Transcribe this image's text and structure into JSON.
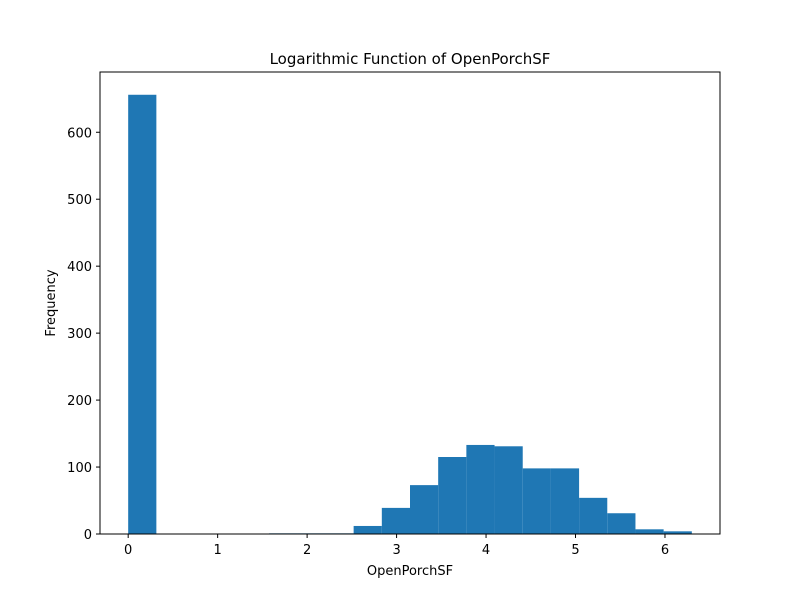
{
  "chart_data": {
    "type": "bar",
    "title": "Logarithmic Function of OpenPorchSF",
    "xlabel": "OpenPorchSF",
    "ylabel": "Frequency",
    "xlim": [
      -0.315,
      6.615
    ],
    "ylim": [
      0,
      690
    ],
    "xticks": [
      0,
      1,
      2,
      3,
      4,
      5,
      6
    ],
    "yticks": [
      0,
      100,
      200,
      300,
      400,
      500,
      600
    ],
    "bins": [
      {
        "x0": 0.0,
        "x1": 0.315,
        "value": 656
      },
      {
        "x0": 0.315,
        "x1": 0.63,
        "value": 0
      },
      {
        "x0": 0.63,
        "x1": 0.945,
        "value": 0
      },
      {
        "x0": 0.945,
        "x1": 1.26,
        "value": 0
      },
      {
        "x0": 1.26,
        "x1": 1.575,
        "value": 0
      },
      {
        "x0": 1.575,
        "x1": 1.89,
        "value": 1
      },
      {
        "x0": 1.89,
        "x1": 2.205,
        "value": 1
      },
      {
        "x0": 2.205,
        "x1": 2.52,
        "value": 1
      },
      {
        "x0": 2.52,
        "x1": 2.835,
        "value": 12
      },
      {
        "x0": 2.835,
        "x1": 3.15,
        "value": 39
      },
      {
        "x0": 3.15,
        "x1": 3.465,
        "value": 73
      },
      {
        "x0": 3.465,
        "x1": 3.78,
        "value": 115
      },
      {
        "x0": 3.78,
        "x1": 4.095,
        "value": 133
      },
      {
        "x0": 4.095,
        "x1": 4.41,
        "value": 131
      },
      {
        "x0": 4.41,
        "x1": 4.725,
        "value": 98
      },
      {
        "x0": 4.725,
        "x1": 5.04,
        "value": 98
      },
      {
        "x0": 5.04,
        "x1": 5.355,
        "value": 54
      },
      {
        "x0": 5.355,
        "x1": 5.67,
        "value": 31
      },
      {
        "x0": 5.67,
        "x1": 5.985,
        "value": 7
      },
      {
        "x0": 5.985,
        "x1": 6.3,
        "value": 4
      }
    ],
    "bar_color": "#1f77b4",
    "grid": false,
    "legend": "none"
  }
}
